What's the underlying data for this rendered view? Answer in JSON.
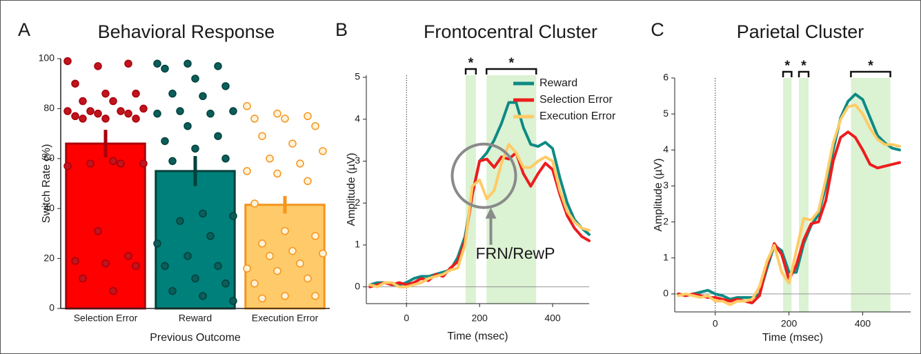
{
  "chart_data": [
    {
      "type": "bar",
      "panel_label": "A",
      "title": "Behavioral Response",
      "x_label": "Previous Outcome",
      "y_label": "Switch Rate (%)",
      "categories": [
        "Selection Error",
        "Reward",
        "Execution Error"
      ],
      "values": [
        66,
        55,
        41.5
      ],
      "errors": [
        5.5,
        6,
        3.5
      ],
      "colors": [
        "#ff0000",
        "#00807a",
        "#ffca6a"
      ],
      "edge_colors": [
        "#a8000a",
        "#00403c",
        "#f5941c"
      ],
      "point_colors": [
        "#c0141e",
        "#0b5e5a",
        "#fff2d6"
      ],
      "points": [
        [
          99,
          97,
          98,
          90,
          86,
          86,
          83,
          83,
          80,
          79,
          79,
          79,
          78,
          78,
          77,
          76,
          76,
          76,
          59,
          58,
          58,
          58,
          57,
          31,
          21,
          19,
          18,
          17,
          12,
          7
        ],
        [
          98,
          98,
          97,
          96,
          92,
          89,
          86,
          85,
          79,
          79,
          78,
          78,
          73,
          69,
          67,
          64,
          60,
          59,
          38,
          37,
          35,
          29,
          26,
          21,
          17,
          17,
          12,
          10,
          7,
          5,
          3
        ],
        [
          81,
          78,
          77,
          76,
          76,
          73,
          69,
          66,
          63,
          60,
          58,
          55,
          54,
          51,
          42,
          31,
          29,
          26,
          23,
          22,
          21,
          18,
          16,
          15,
          12,
          10,
          5,
          5,
          4
        ]
      ],
      "ylim": [
        0,
        100
      ],
      "yticks": [
        0,
        20,
        40,
        60,
        80,
        100
      ]
    },
    {
      "type": "line",
      "panel_label": "B",
      "title": "Frontocentral Cluster",
      "x_label": "Time (msec)",
      "y_label": "Amplitude (µV)",
      "x": [
        -100,
        -80,
        -60,
        -40,
        -20,
        0,
        20,
        40,
        60,
        80,
        100,
        120,
        140,
        160,
        180,
        200,
        220,
        240,
        260,
        280,
        300,
        320,
        340,
        360,
        380,
        400,
        420,
        440,
        460,
        480,
        500
      ],
      "series": [
        {
          "name": "Reward",
          "color": "#0e8a84",
          "values": [
            0.05,
            0.1,
            0.1,
            0.05,
            0.05,
            0.1,
            0.2,
            0.25,
            0.25,
            0.3,
            0.35,
            0.4,
            0.7,
            1.2,
            2.2,
            3.0,
            3.2,
            3.5,
            3.9,
            4.4,
            4.4,
            3.8,
            3.4,
            3.35,
            3.45,
            3.3,
            2.6,
            2.0,
            1.6,
            1.4,
            1.25
          ]
        },
        {
          "name": "Selection Error",
          "color": "#ee1c1c",
          "values": [
            0,
            0.05,
            0.1,
            0.05,
            0.1,
            0.05,
            0.1,
            0.2,
            0.15,
            0.3,
            0.25,
            0.45,
            0.6,
            1.1,
            2.2,
            3.0,
            3.05,
            2.85,
            3.1,
            3.05,
            3.2,
            2.7,
            2.4,
            2.7,
            2.95,
            2.8,
            2.2,
            1.7,
            1.4,
            1.2,
            1.1
          ]
        },
        {
          "name": "Execution Error",
          "color": "#ffcb66",
          "values": [
            0.05,
            0,
            0.1,
            0.1,
            0,
            0,
            0.05,
            0.1,
            0.2,
            0.25,
            0.3,
            0.4,
            0.45,
            1.0,
            2.4,
            2.55,
            2.1,
            2.3,
            2.95,
            3.4,
            3.2,
            2.85,
            2.85,
            3.0,
            3.1,
            3.0,
            2.3,
            1.8,
            1.55,
            1.4,
            1.35
          ]
        }
      ],
      "significance": [
        {
          "range": [
            162,
            190
          ],
          "label": "*"
        },
        {
          "range": [
            219,
            355
          ],
          "label": "*"
        }
      ],
      "annotation": "FRN/RewP",
      "legend": "upper right",
      "xlim": [
        -110,
        500
      ],
      "xticks": [
        0,
        200,
        400
      ],
      "ylim": [
        -0.4,
        5.05
      ],
      "yticks": [
        0,
        1,
        2,
        3,
        4,
        5
      ]
    },
    {
      "type": "line",
      "panel_label": "C",
      "title": "Parietal Cluster",
      "x_label": "Time (msec)",
      "y_label": "Amplitude (µV)",
      "x": [
        -100,
        -80,
        -60,
        -40,
        -20,
        0,
        20,
        40,
        60,
        80,
        100,
        120,
        140,
        160,
        180,
        200,
        220,
        240,
        260,
        280,
        300,
        320,
        340,
        360,
        380,
        400,
        420,
        440,
        460,
        480,
        500
      ],
      "series": [
        {
          "color": "#0e8a84",
          "values": [
            0,
            -0.05,
            0,
            0.05,
            0.1,
            0,
            -0.05,
            -0.15,
            -0.1,
            -0.1,
            -0.1,
            0,
            0.7,
            1.35,
            1.2,
            0.6,
            0.6,
            1.4,
            1.9,
            2.2,
            3.0,
            4.0,
            4.9,
            5.35,
            5.55,
            5.4,
            4.9,
            4.4,
            4.2,
            4.05,
            4.0
          ]
        },
        {
          "color": "#ee1c1c",
          "values": [
            0,
            -0.05,
            0,
            -0.05,
            -0.1,
            -0.1,
            -0.15,
            -0.2,
            -0.15,
            -0.2,
            -0.25,
            -0.05,
            0.8,
            1.4,
            1.1,
            0.4,
            0.8,
            1.5,
            1.95,
            2.0,
            2.6,
            3.7,
            4.35,
            4.5,
            4.35,
            4.0,
            3.6,
            3.5,
            3.55,
            3.6,
            3.65
          ]
        },
        {
          "color": "#ffcb66",
          "values": [
            -0.05,
            0,
            -0.05,
            -0.1,
            -0.05,
            -0.2,
            -0.2,
            -0.3,
            -0.2,
            -0.2,
            -0.15,
            0.2,
            0.9,
            1.35,
            0.6,
            0.3,
            1.2,
            2.1,
            2.05,
            2.3,
            3.2,
            4.2,
            4.85,
            5.2,
            5.25,
            5.0,
            4.6,
            4.3,
            4.15,
            4.15,
            4.1
          ]
        }
      ],
      "significance": [
        {
          "range": [
            184,
            207
          ],
          "label": "*"
        },
        {
          "range": [
            227,
            253
          ],
          "label": "*"
        },
        {
          "range": [
            368,
            475
          ],
          "label": "*"
        }
      ],
      "xlim": [
        -110,
        530
      ],
      "xticks": [
        0,
        200,
        400
      ],
      "ylim": [
        -0.5,
        6
      ],
      "yticks": [
        0,
        1,
        2,
        3,
        4,
        5,
        6
      ]
    }
  ]
}
